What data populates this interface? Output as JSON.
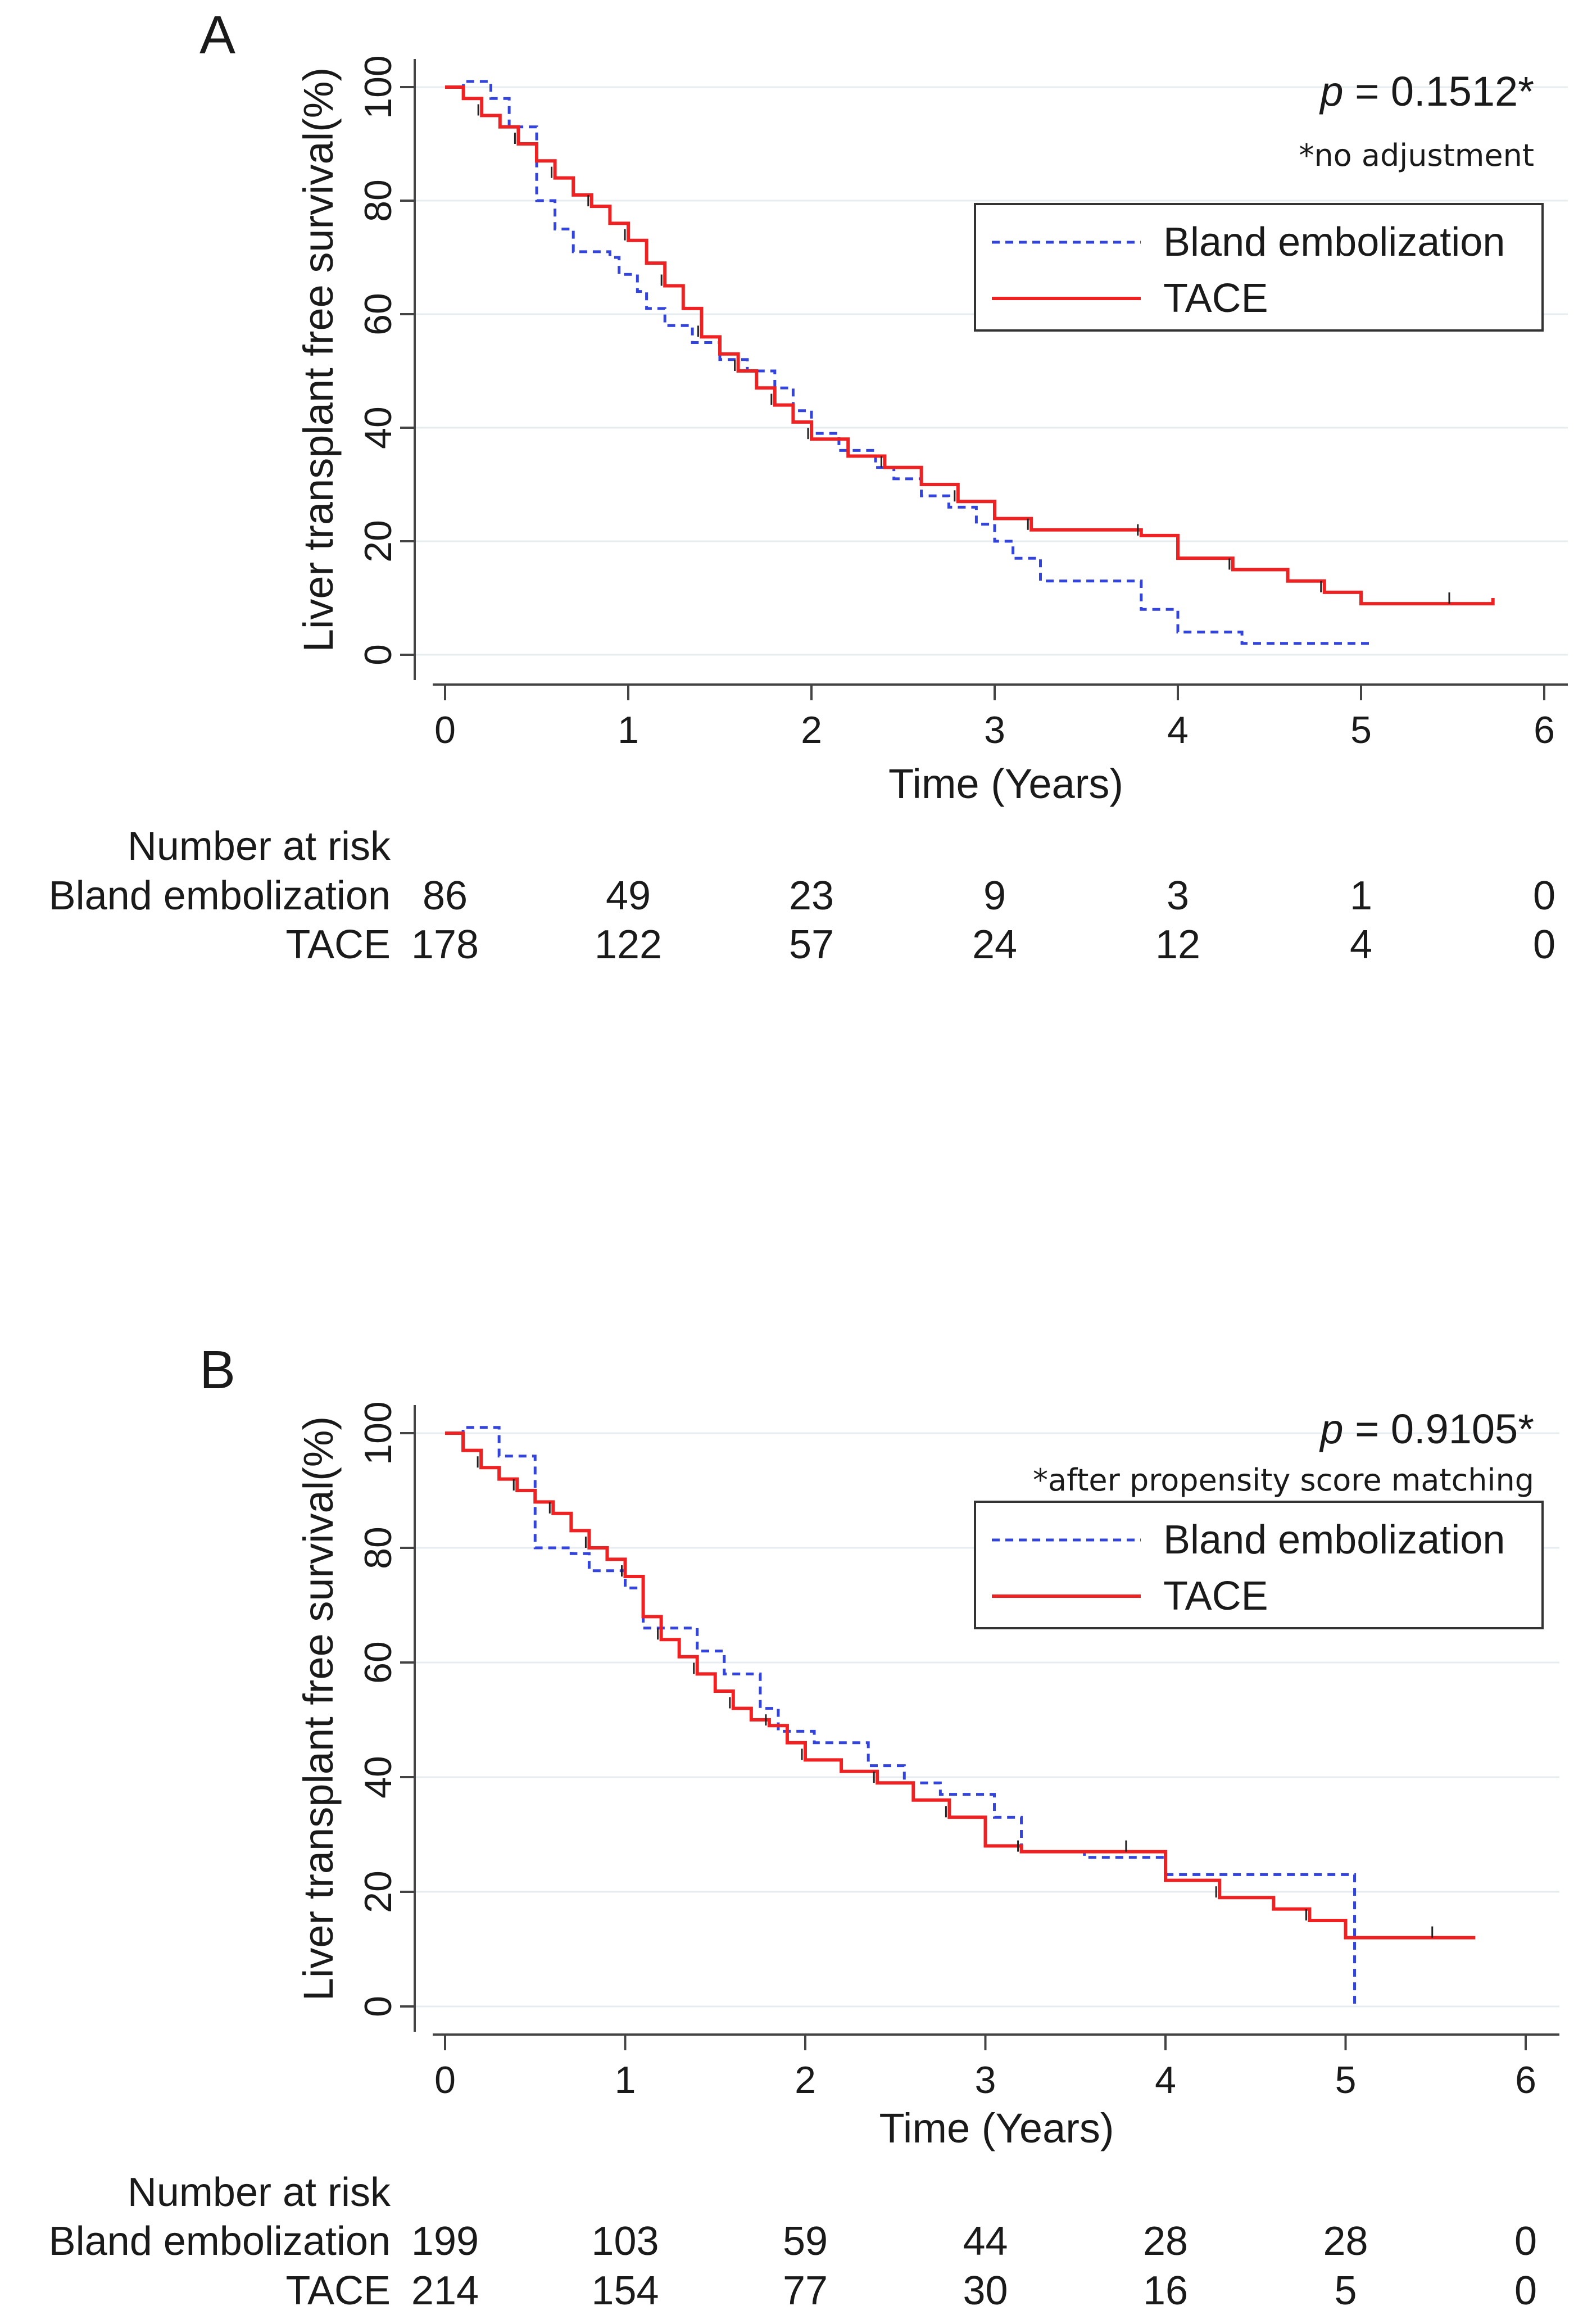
{
  "chart_data": [
    {
      "type": "line",
      "panel": "A",
      "ylabel": "Liver transplant free survival(%)",
      "xlabel": "Time (Years)",
      "xlim": [
        0,
        6
      ],
      "ylim": [
        0,
        100
      ],
      "xticks": [
        "0",
        "1",
        "2",
        "3",
        "4",
        "5",
        "6"
      ],
      "yticks": [
        "0",
        "20",
        "40",
        "60",
        "80",
        "100"
      ],
      "p_value": "= 0.1512*",
      "p_label": "p",
      "p_note": "*no adjustment",
      "legend": [
        "Bland embolization",
        "TACE"
      ],
      "series": [
        {
          "name": "Bland embolization",
          "color": "#3344dd",
          "style": "dashed",
          "x": [
            0,
            0.1,
            0.1,
            0.25,
            0.25,
            0.35,
            0.35,
            0.5,
            0.5,
            0.6,
            0.6,
            0.7,
            0.7,
            0.9,
            0.9,
            0.95,
            0.95,
            1.05,
            1.05,
            1.1,
            1.1,
            1.2,
            1.2,
            1.35,
            1.35,
            1.5,
            1.5,
            1.65,
            1.65,
            1.8,
            1.8,
            1.9,
            1.9,
            2,
            2,
            2.15,
            2.15,
            2.35,
            2.35,
            2.45,
            2.45,
            2.6,
            2.6,
            2.75,
            2.75,
            2.9,
            2.9,
            3,
            3,
            3.1,
            3.1,
            3.25,
            3.25,
            3.8,
            3.8,
            4,
            4,
            4.35,
            4.35,
            5.05
          ],
          "y": [
            100,
            100,
            101,
            101,
            98,
            98,
            93,
            93,
            80,
            80,
            75,
            75,
            71,
            71,
            70,
            70,
            67,
            67,
            64,
            64,
            61,
            61,
            58,
            58,
            55,
            55,
            52,
            52,
            50,
            50,
            47,
            47,
            43,
            43,
            39,
            39,
            36,
            36,
            33,
            33,
            31,
            31,
            28,
            28,
            26,
            26,
            23,
            23,
            20,
            20,
            17,
            17,
            13,
            13,
            8,
            8,
            4,
            4,
            2,
            2
          ]
        },
        {
          "name": "TACE",
          "color": "#ee2222",
          "style": "solid",
          "x": [
            0,
            0.1,
            0.2,
            0.3,
            0.4,
            0.5,
            0.6,
            0.7,
            0.8,
            0.9,
            1,
            1.1,
            1.2,
            1.3,
            1.4,
            1.5,
            1.6,
            1.7,
            1.8,
            1.9,
            2,
            2.2,
            2.4,
            2.6,
            2.8,
            3,
            3.2,
            3.5,
            3.8,
            4,
            4.3,
            4.6,
            4.8,
            5,
            5.5,
            5.72
          ],
          "y": [
            100,
            98,
            95,
            93,
            90,
            87,
            84,
            81,
            79,
            76,
            73,
            69,
            65,
            61,
            56,
            53,
            50,
            47,
            44,
            41,
            38,
            35,
            33,
            30,
            27,
            24,
            22,
            22,
            21,
            17,
            15,
            13,
            11,
            9,
            9,
            10
          ]
        }
      ],
      "risk_table": {
        "header": "Number at risk",
        "rows": [
          {
            "label": "Bland embolization",
            "values": [
              "86",
              "49",
              "23",
              "9",
              "3",
              "1",
              "0"
            ]
          },
          {
            "label": "TACE",
            "values": [
              "178",
              "122",
              "57",
              "24",
              "12",
              "4",
              "0"
            ]
          }
        ]
      }
    },
    {
      "type": "line",
      "panel": "B",
      "ylabel": "Liver transplant free survival(%)",
      "xlabel": "Time (Years)",
      "xlim": [
        0,
        6
      ],
      "ylim": [
        0,
        100
      ],
      "xticks": [
        "0",
        "1",
        "2",
        "3",
        "4",
        "5",
        "6"
      ],
      "yticks": [
        "0",
        "20",
        "40",
        "60",
        "80",
        "100"
      ],
      "p_value": "= 0.9105*",
      "p_label": "p",
      "p_note": "*after propensity score matching",
      "legend": [
        "Bland embolization",
        "TACE"
      ],
      "series": [
        {
          "name": "Bland embolization",
          "color": "#3344dd",
          "style": "dashed",
          "x": [
            0,
            0.1,
            0.1,
            0.3,
            0.3,
            0.5,
            0.5,
            0.7,
            0.7,
            0.8,
            0.8,
            1,
            1,
            1.1,
            1.1,
            1.4,
            1.4,
            1.55,
            1.55,
            1.75,
            1.75,
            1.85,
            1.85,
            2.05,
            2.05,
            2.35,
            2.35,
            2.55,
            2.55,
            2.75,
            2.75,
            3.05,
            3.05,
            3.2,
            3.2,
            3.55,
            3.55,
            4,
            4,
            5.05,
            5.05
          ],
          "y": [
            100,
            100,
            101,
            101,
            96,
            96,
            80,
            80,
            79,
            79,
            76,
            76,
            73,
            73,
            66,
            66,
            62,
            62,
            58,
            58,
            52,
            52,
            48,
            48,
            46,
            46,
            42,
            42,
            39,
            39,
            37,
            37,
            33,
            33,
            27,
            27,
            26,
            26,
            23,
            23,
            0
          ]
        },
        {
          "name": "TACE",
          "color": "#ee2222",
          "style": "solid",
          "x": [
            0,
            0.1,
            0.2,
            0.3,
            0.4,
            0.5,
            0.6,
            0.7,
            0.8,
            0.9,
            1,
            1.1,
            1.2,
            1.3,
            1.4,
            1.5,
            1.6,
            1.7,
            1.8,
            1.9,
            2,
            2.2,
            2.4,
            2.6,
            2.8,
            3,
            3.2,
            3.5,
            3.8,
            4,
            4.3,
            4.6,
            4.8,
            5,
            5.5,
            5.72
          ],
          "y": [
            100,
            97,
            94,
            92,
            90,
            88,
            86,
            83,
            80,
            78,
            75,
            68,
            64,
            61,
            58,
            55,
            52,
            50,
            49,
            46,
            43,
            41,
            39,
            36,
            33,
            28,
            27,
            27,
            27,
            22,
            19,
            17,
            15,
            12,
            12,
            12
          ]
        }
      ],
      "risk_table": {
        "header": "Number at risk",
        "rows": [
          {
            "label": "Bland embolization",
            "values": [
              "199",
              "103",
              "59",
              "44",
              "28",
              "28",
              "0"
            ]
          },
          {
            "label": "TACE",
            "values": [
              "214",
              "154",
              "77",
              "30",
              "16",
              "5",
              "0"
            ]
          }
        ]
      }
    }
  ]
}
